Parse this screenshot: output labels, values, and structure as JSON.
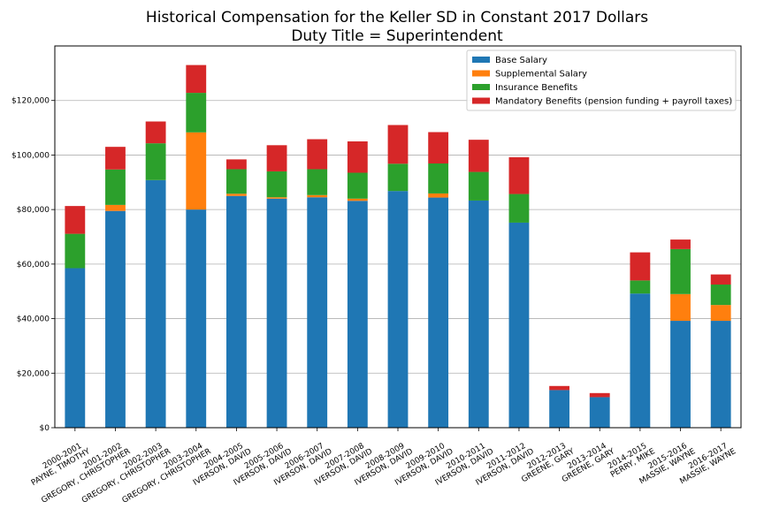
{
  "chart_data": {
    "type": "bar",
    "stacked": true,
    "title": "Historical Compensation for the Keller SD in Constant 2017 Dollars",
    "subtitle": "Duty Title = Superintendent",
    "xlabel": "",
    "ylabel": "",
    "ylim": [
      0,
      140000
    ],
    "yticks": [
      "$0",
      "$20,000",
      "$40,000",
      "$60,000",
      "$80,000",
      "$100,000",
      "$120,000"
    ],
    "ytick_values": [
      0,
      20000,
      40000,
      60000,
      80000,
      100000,
      120000
    ],
    "grid": "horizontal",
    "legend_position": "top-right",
    "categories": [
      [
        "2000-2001",
        "PAYNE, TIMOTHY"
      ],
      [
        "2001-2002",
        "GREGORY, CHRISTOPHER"
      ],
      [
        "2002-2003",
        "GREGORY, CHRISTOPHER"
      ],
      [
        "2003-2004",
        "GREGORY, CHRISTOPHER"
      ],
      [
        "2004-2005",
        "IVERSON, DAVID"
      ],
      [
        "2005-2006",
        "IVERSON, DAVID"
      ],
      [
        "2006-2007",
        "IVERSON, DAVID"
      ],
      [
        "2007-2008",
        "IVERSON, DAVID"
      ],
      [
        "2008-2009",
        "IVERSON, DAVID"
      ],
      [
        "2009-2010",
        "IVERSON, DAVID"
      ],
      [
        "2010-2011",
        "IVERSON, DAVID"
      ],
      [
        "2011-2012",
        "IVERSON, DAVID"
      ],
      [
        "2012-2013",
        "GREENE, GARY"
      ],
      [
        "2013-2014",
        "GREENE, GARY"
      ],
      [
        "2014-2015",
        "PERRY, MIKE"
      ],
      [
        "2015-2016",
        "MASSIE, WAYNE"
      ],
      [
        "2016-2017",
        "MASSIE, WAYNE"
      ]
    ],
    "series": [
      {
        "name": "Base Salary",
        "color": "#1f77b4",
        "values": [
          58500,
          79500,
          90800,
          80000,
          85000,
          84000,
          84500,
          83200,
          86800,
          84400,
          83300,
          75200,
          13800,
          11200,
          49200,
          39200,
          39200
        ]
      },
      {
        "name": "Supplemental Salary",
        "color": "#ff7f0e",
        "values": [
          0,
          2200,
          0,
          28300,
          800,
          500,
          800,
          800,
          0,
          1500,
          0,
          0,
          0,
          0,
          0,
          9800,
          5800
        ]
      },
      {
        "name": "Insurance Benefits",
        "color": "#2ca02c",
        "values": [
          12600,
          13000,
          13500,
          14500,
          9000,
          9500,
          9500,
          9500,
          10000,
          11000,
          10500,
          10500,
          0,
          0,
          4800,
          16500,
          7500
        ]
      },
      {
        "name": "Mandatory Benefits (pension funding + payroll taxes)",
        "color": "#d62728",
        "values": [
          10200,
          8300,
          8000,
          10200,
          3600,
          9600,
          11000,
          11500,
          14200,
          11500,
          11800,
          13500,
          1500,
          1500,
          10300,
          3500,
          3700
        ]
      }
    ]
  }
}
